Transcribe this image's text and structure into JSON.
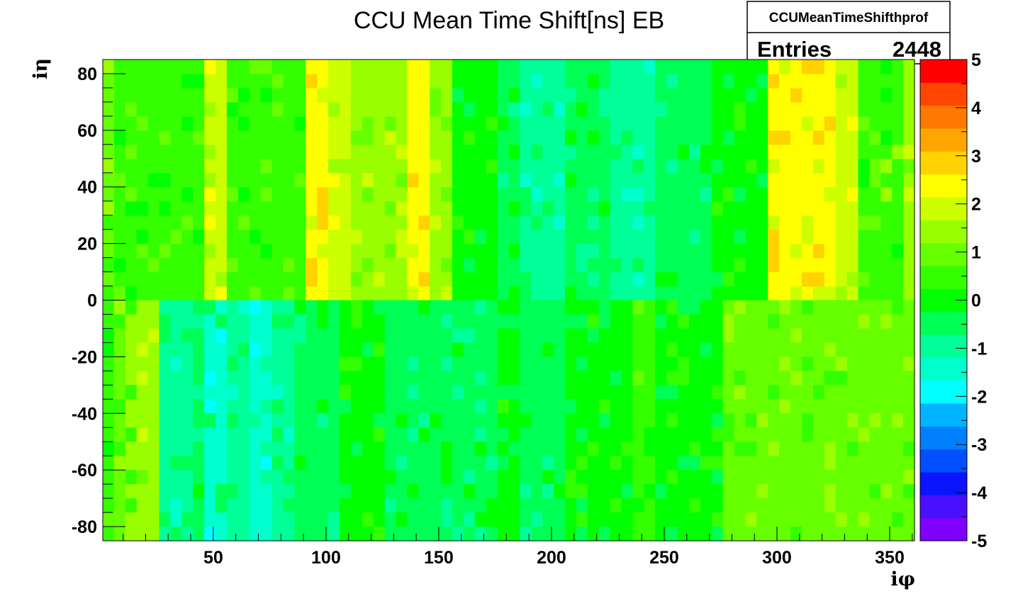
{
  "chart_data": {
    "type": "heatmap",
    "title": "CCU Mean Time Shift[ns] EB",
    "xlabel": "iφ",
    "ylabel": "iη",
    "xlim": [
      1,
      361
    ],
    "ylim": [
      -85,
      85
    ],
    "zlim": [
      -5,
      5
    ],
    "xticks": [
      50,
      100,
      150,
      200,
      250,
      300,
      350
    ],
    "yticks": [
      -80,
      -60,
      -40,
      -20,
      0,
      20,
      40,
      60,
      80
    ],
    "zticks": [
      -5,
      -4,
      -3,
      -2,
      -1,
      0,
      1,
      2,
      3,
      4,
      5
    ],
    "bin_width_x": 5,
    "bin_width_y": 5,
    "stats_box": {
      "name": "CCUMeanTimeShifthprof",
      "entries_label": "Entries",
      "entries": "2448"
    },
    "palette": [
      "#7f00ff",
      "#4b0fff",
      "#0a14ff",
      "#0050ff",
      "#0080ff",
      "#00b4ff",
      "#00ffff",
      "#00ffcc",
      "#00ff99",
      "#00ff55",
      "#00ff00",
      "#33ff00",
      "#66ff00",
      "#99ff00",
      "#ccff00",
      "#ffff00",
      "#ffd200",
      "#ffa500",
      "#ff7800",
      "#ff4500",
      "#ff0000"
    ],
    "columns_upper_eta_0_to_85": [
      0.8,
      0.3,
      0.3,
      0.5,
      0.5,
      0.3,
      0.3,
      0.3,
      0.3,
      1.8,
      1.8,
      0.3,
      0.3,
      0.3,
      0.3,
      0.3,
      0.5,
      0.5,
      2.3,
      2.3,
      2.0,
      2.0,
      1.5,
      1.5,
      1.5,
      1.5,
      1.5,
      2.5,
      2.5,
      1.5,
      1.5,
      0.0,
      0.0,
      0.0,
      0.0,
      -0.5,
      -0.5,
      -0.8,
      -0.8,
      -0.8,
      -0.8,
      -0.5,
      -0.5,
      -0.5,
      -0.5,
      -1.0,
      -1.0,
      -1.0,
      -1.0,
      -0.5,
      -0.5,
      -0.3,
      -0.3,
      -0.3,
      0.0,
      0.0,
      0.0,
      0.2,
      0.2,
      2.5,
      2.5,
      2.2,
      2.2,
      2.2,
      2.2,
      2.0,
      2.0,
      0.3,
      0.3,
      0.7,
      0.7,
      1.3
    ],
    "columns_lower_eta_minus85_to_0": [
      0.6,
      0.8,
      1.2,
      1.5,
      1.5,
      -1.0,
      -1.0,
      -1.0,
      -0.5,
      -1.2,
      -1.2,
      -1.0,
      -1.0,
      -1.5,
      -1.5,
      -1.0,
      -1.0,
      -0.5,
      -0.5,
      -0.3,
      -0.3,
      0.0,
      0.0,
      0.0,
      0.0,
      -0.3,
      -0.3,
      -0.3,
      -0.3,
      -0.5,
      -0.5,
      -0.5,
      -0.5,
      -0.5,
      -0.5,
      -0.2,
      -0.2,
      -0.5,
      -0.5,
      -0.5,
      -0.5,
      -0.2,
      -0.2,
      0.0,
      0.0,
      0.0,
      0.0,
      0.3,
      0.3,
      0.0,
      0.0,
      0.0,
      0.0,
      0.0,
      0.0,
      0.8,
      0.8,
      0.8,
      0.8,
      0.8,
      0.8,
      0.8,
      0.8,
      0.8,
      0.8,
      0.8,
      0.8,
      0.8,
      0.8,
      0.8,
      0.8,
      0.8
    ],
    "notes": []
  }
}
